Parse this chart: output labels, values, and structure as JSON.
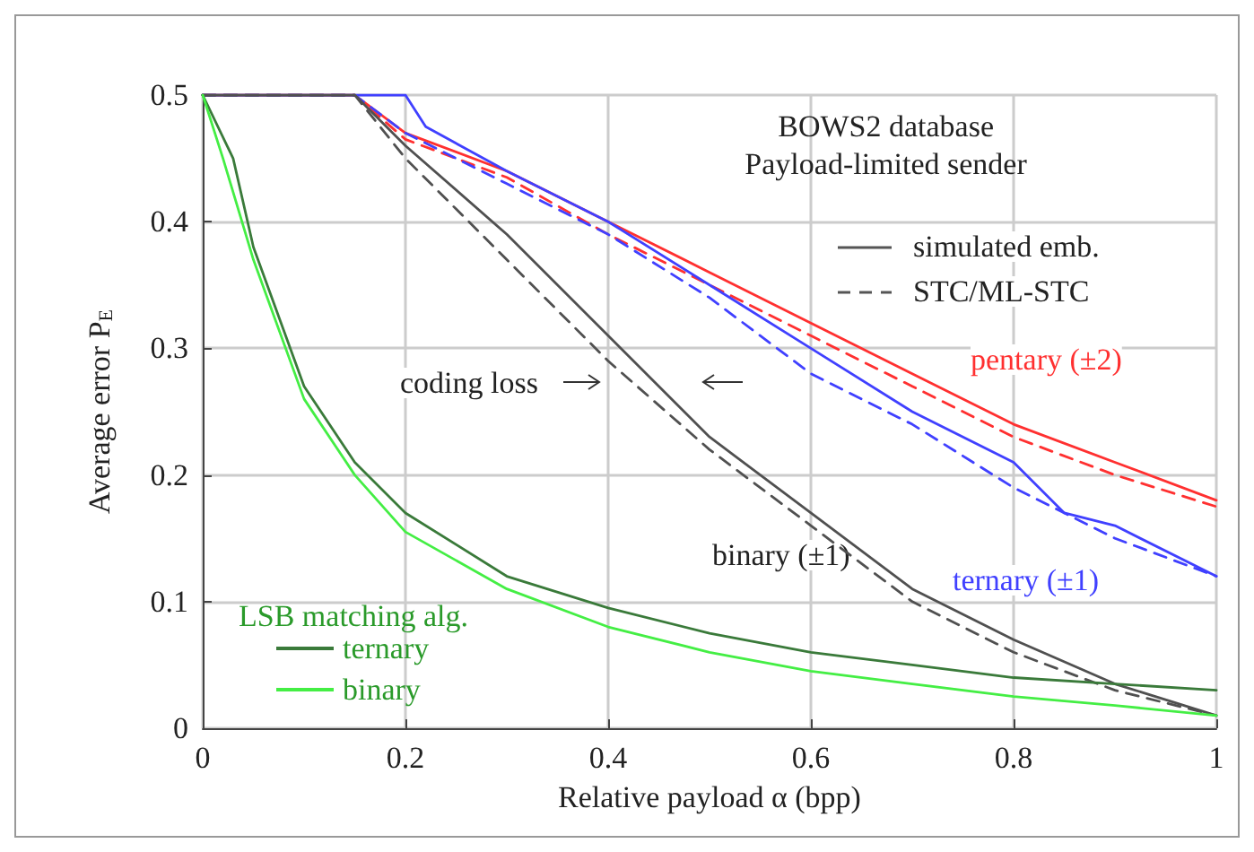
{
  "chart_data": {
    "type": "line",
    "title": "BOWS2 database",
    "subtitle": "Payload-limited sender",
    "xlabel": "Relative payload α (bpp)",
    "ylabel": "Average error P$_{E}$",
    "legend_title": "LSB matching alg.",
    "xlim": [
      0,
      1
    ],
    "ylim": [
      0,
      0.5
    ],
    "xticks": [
      0,
      0.2,
      0.4,
      0.6,
      0.8,
      1
    ],
    "yticks": [
      0,
      0.1,
      0.2,
      0.3,
      0.4,
      0.5
    ],
    "grid": true,
    "legend": "bottom left",
    "marker": "none",
    "series": [
      {
        "color": "#ff3030",
        "line_style": "solid",
        "x": [
          0,
          0.15,
          0.2,
          0.3,
          0.4,
          0.5,
          0.6,
          0.7,
          0.8,
          0.9,
          1
        ],
        "values": [
          0.5,
          0.5,
          0.47,
          0.44,
          0.4,
          0.36,
          0.32,
          0.28,
          0.24,
          0.21,
          0.18
        ]
      },
      {
        "color": "#ff3030",
        "line_style": "dashed",
        "x": [
          0,
          0.15,
          0.2,
          0.3,
          0.4,
          0.5,
          0.6,
          0.7,
          0.8,
          0.9,
          1
        ],
        "values": [
          0.5,
          0.5,
          0.465,
          0.435,
          0.39,
          0.35,
          0.31,
          0.27,
          0.23,
          0.2,
          0.175
        ]
      },
      {
        "color": "#4040ff",
        "line_style": "solid",
        "x": [
          0,
          0.2,
          0.22,
          0.3,
          0.4,
          0.5,
          0.6,
          0.7,
          0.8,
          0.85,
          0.9,
          1
        ],
        "values": [
          0.5,
          0.5,
          0.475,
          0.44,
          0.4,
          0.35,
          0.3,
          0.25,
          0.21,
          0.17,
          0.16,
          0.12
        ]
      },
      {
        "color": "#4040ff",
        "line_style": "dashed",
        "x": [
          0,
          0.15,
          0.2,
          0.3,
          0.4,
          0.5,
          0.6,
          0.7,
          0.8,
          0.9,
          1
        ],
        "values": [
          0.5,
          0.5,
          0.47,
          0.43,
          0.39,
          0.34,
          0.28,
          0.24,
          0.19,
          0.15,
          0.12
        ]
      },
      {
        "color": "#505050",
        "line_style": "solid",
        "x": [
          0,
          0.15,
          0.2,
          0.3,
          0.4,
          0.5,
          0.6,
          0.7,
          0.8,
          0.9,
          1
        ],
        "values": [
          0.5,
          0.5,
          0.46,
          0.39,
          0.31,
          0.23,
          0.17,
          0.11,
          0.07,
          0.035,
          0.01
        ]
      },
      {
        "color": "#505050",
        "line_style": "dashed",
        "x": [
          0,
          0.15,
          0.2,
          0.3,
          0.4,
          0.5,
          0.6,
          0.7,
          0.8,
          0.9,
          1
        ],
        "values": [
          0.5,
          0.5,
          0.45,
          0.37,
          0.29,
          0.22,
          0.16,
          0.1,
          0.06,
          0.03,
          0.01
        ]
      },
      {
        "name": "ternary",
        "color": "#3a7a3a",
        "line_style": "solid",
        "x": [
          0,
          0.03,
          0.05,
          0.1,
          0.15,
          0.2,
          0.3,
          0.4,
          0.5,
          0.6,
          0.7,
          0.8,
          0.9,
          1
        ],
        "values": [
          0.5,
          0.45,
          0.38,
          0.27,
          0.21,
          0.17,
          0.12,
          0.095,
          0.075,
          0.06,
          0.05,
          0.04,
          0.035,
          0.03
        ]
      },
      {
        "name": "binary",
        "color": "#44ee44",
        "line_style": "solid",
        "x": [
          0,
          0.02,
          0.05,
          0.1,
          0.15,
          0.2,
          0.3,
          0.4,
          0.5,
          0.6,
          0.7,
          0.8,
          0.9,
          1
        ],
        "values": [
          0.5,
          0.45,
          0.37,
          0.26,
          0.2,
          0.155,
          0.11,
          0.08,
          0.06,
          0.045,
          0.035,
          0.025,
          0.018,
          0.01
        ]
      }
    ],
    "annotations": [
      "simulated emb.",
      "STC/ML-STC",
      "coding loss",
      "pentary (±2)",
      "binary (±1)",
      "ternary (±1)"
    ]
  }
}
